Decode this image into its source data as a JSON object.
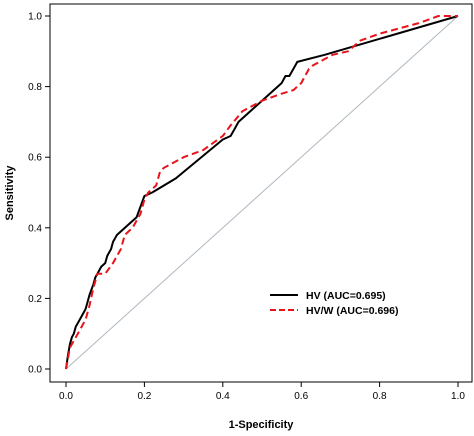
{
  "chart_data": {
    "type": "line",
    "xlabel": "1-Specificity",
    "ylabel": "Sensitivity",
    "xlim": [
      0,
      1
    ],
    "ylim": [
      0,
      1
    ],
    "x_ticks": [
      "0.0",
      "0.2",
      "0.4",
      "0.6",
      "0.8",
      "1.0"
    ],
    "y_ticks": [
      "0.0",
      "0.2",
      "0.4",
      "0.6",
      "0.8",
      "1.0"
    ],
    "grid": false,
    "legend": "center-right",
    "reference_line": {
      "x": [
        0,
        1
      ],
      "y": [
        0,
        1
      ],
      "color": "#b0b8bf"
    },
    "series": [
      {
        "name": "HV  (AUC=0.695)",
        "color": "#000000",
        "style": "solid",
        "x": [
          0.0,
          0.005,
          0.01,
          0.015,
          0.02,
          0.025,
          0.03,
          0.04,
          0.05,
          0.055,
          0.06,
          0.07,
          0.075,
          0.08,
          0.09,
          0.1,
          0.105,
          0.11,
          0.115,
          0.12,
          0.125,
          0.13,
          0.18,
          0.19,
          0.2,
          0.22,
          0.28,
          0.4,
          0.42,
          0.43,
          0.44,
          0.5,
          0.53,
          0.55,
          0.56,
          0.57,
          0.58,
          0.59,
          0.66,
          1.0
        ],
        "y": [
          0.0,
          0.04,
          0.07,
          0.09,
          0.1,
          0.12,
          0.13,
          0.15,
          0.17,
          0.19,
          0.21,
          0.24,
          0.26,
          0.27,
          0.29,
          0.3,
          0.32,
          0.33,
          0.34,
          0.36,
          0.37,
          0.38,
          0.43,
          0.46,
          0.49,
          0.5,
          0.54,
          0.65,
          0.66,
          0.68,
          0.7,
          0.76,
          0.79,
          0.81,
          0.83,
          0.83,
          0.85,
          0.87,
          0.89,
          1.0
        ]
      },
      {
        "name": "HV/W  (AUC=0.696)",
        "color": "#e8141b",
        "style": "dashed",
        "x": [
          0.0,
          0.01,
          0.02,
          0.03,
          0.04,
          0.05,
          0.06,
          0.07,
          0.08,
          0.1,
          0.12,
          0.14,
          0.15,
          0.17,
          0.19,
          0.2,
          0.21,
          0.23,
          0.24,
          0.25,
          0.3,
          0.35,
          0.4,
          0.42,
          0.45,
          0.5,
          0.55,
          0.58,
          0.6,
          0.62,
          0.63,
          0.68,
          0.72,
          0.75,
          0.8,
          0.9,
          0.95,
          1.0
        ],
        "y": [
          0.0,
          0.06,
          0.08,
          0.1,
          0.12,
          0.14,
          0.18,
          0.23,
          0.27,
          0.27,
          0.3,
          0.34,
          0.38,
          0.4,
          0.44,
          0.48,
          0.5,
          0.52,
          0.56,
          0.57,
          0.6,
          0.62,
          0.66,
          0.69,
          0.73,
          0.76,
          0.78,
          0.79,
          0.81,
          0.85,
          0.86,
          0.89,
          0.9,
          0.93,
          0.95,
          0.98,
          1.0,
          1.0
        ]
      }
    ]
  }
}
